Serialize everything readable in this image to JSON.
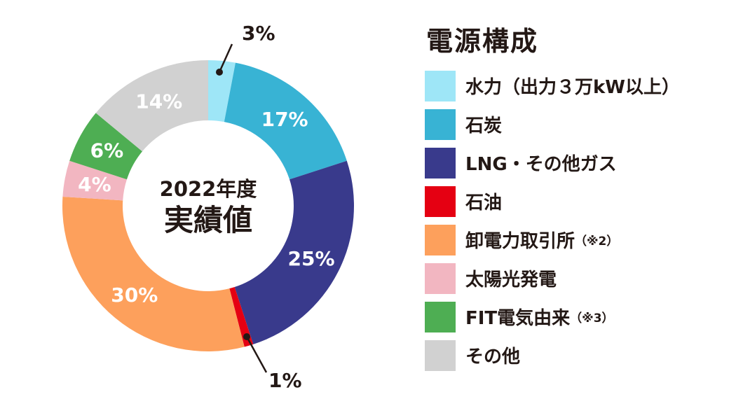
{
  "chart_data": {
    "type": "pie",
    "center_label": {
      "line1": "2022年度",
      "line2": "実績値"
    },
    "legend_title": "電源構成",
    "slices": [
      {
        "label": "水力（出力３万kW以上）",
        "note": "",
        "value": 3,
        "display": "3%",
        "color": "#9EE6F7",
        "label_position": "outside",
        "label_color": "#231815"
      },
      {
        "label": "石炭",
        "note": "",
        "value": 17,
        "display": "17%",
        "color": "#38B3D4",
        "label_position": "inside",
        "label_color": "#ffffff"
      },
      {
        "label": "LNG・その他ガス",
        "note": "",
        "value": 25,
        "display": "25%",
        "color": "#393A8C",
        "label_position": "inside",
        "label_color": "#ffffff"
      },
      {
        "label": "石油",
        "note": "",
        "value": 1,
        "display": "1%",
        "color": "#E50012",
        "label_position": "outside",
        "label_color": "#231815"
      },
      {
        "label": "卸電力取引所",
        "note": "（※2）",
        "value": 30,
        "display": "30%",
        "color": "#FDA05C",
        "label_position": "inside",
        "label_color": "#ffffff"
      },
      {
        "label": "太陽光発電",
        "note": "",
        "value": 4,
        "display": "4%",
        "color": "#F2B6C1",
        "label_position": "inside",
        "label_color": "#ffffff"
      },
      {
        "label": "FIT電気由来",
        "note": "（※3）",
        "value": 6,
        "display": "6%",
        "color": "#4EAE53",
        "label_position": "inside",
        "label_color": "#ffffff"
      },
      {
        "label": "その他",
        "note": "",
        "value": 14,
        "display": "14%",
        "color": "#D1D1D1",
        "label_position": "inside",
        "label_color": "#ffffff"
      }
    ]
  }
}
